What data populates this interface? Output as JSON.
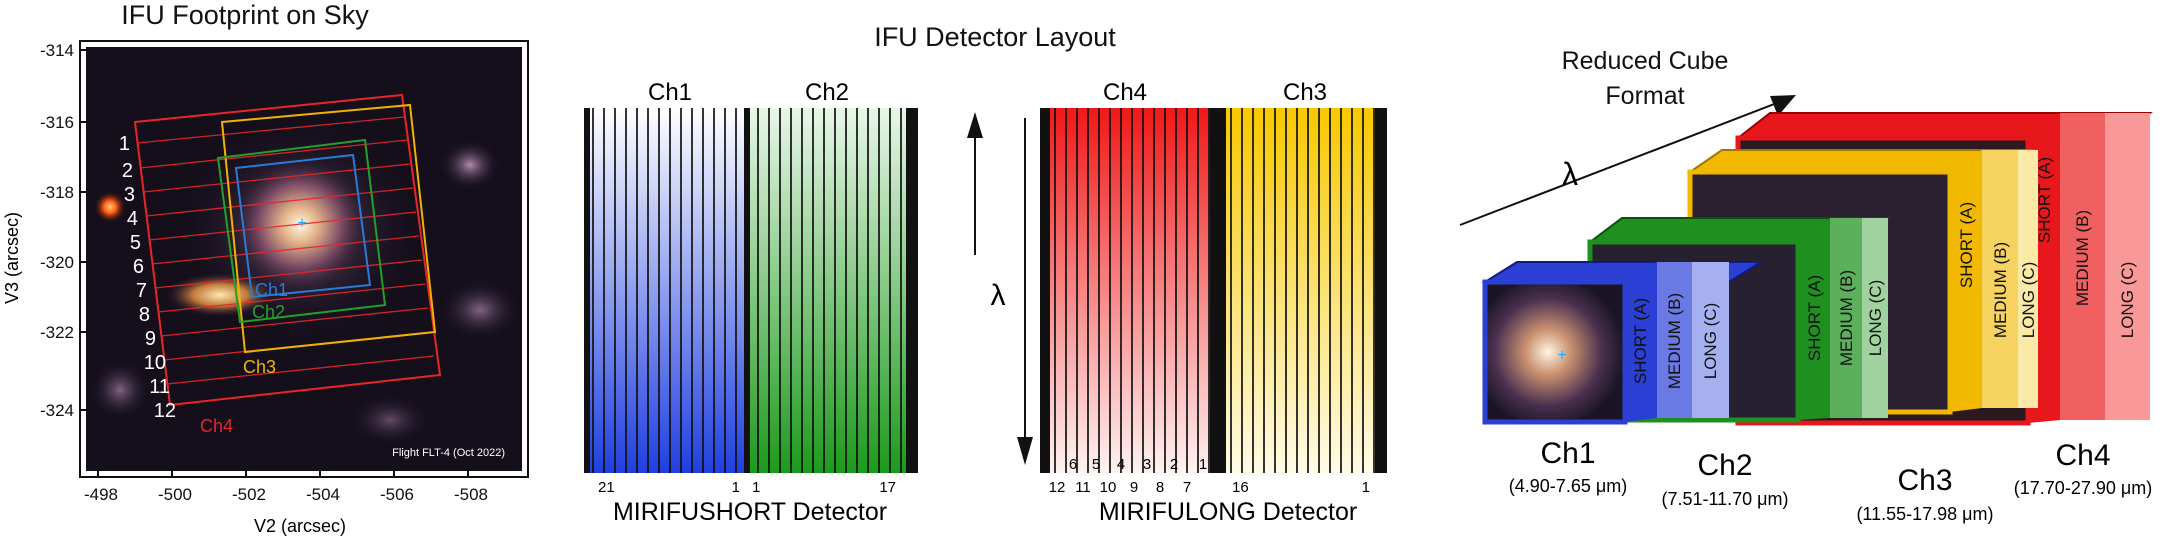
{
  "panel1": {
    "title": "IFU Footprint on Sky",
    "xlabel": "V2 (arcsec)",
    "ylabel": "V3 (arcsec)",
    "xticks": [
      "-498",
      "-500",
      "-502",
      "-504",
      "-506",
      "-508"
    ],
    "yticks": [
      "-314",
      "-316",
      "-318",
      "-320",
      "-322",
      "-324"
    ],
    "slice_numbers": [
      "1",
      "2",
      "3",
      "4",
      "5",
      "6",
      "7",
      "8",
      "9",
      "10",
      "11",
      "12"
    ],
    "channel_labels": {
      "ch1": "Ch1",
      "ch2": "Ch2",
      "ch3": "Ch3",
      "ch4": "Ch4"
    },
    "credit": "Flight FLT-4 (Oct 2022)",
    "colors": {
      "ch1": "#2a7bd6",
      "ch2": "#22a02a",
      "ch3": "#f0b400",
      "ch4": "#e8262a"
    }
  },
  "panel2": {
    "title": "IFU Detector Layout",
    "lambda": "λ",
    "short": {
      "ch_left": "Ch1",
      "ch_right": "Ch2",
      "detector": "MIRIFUSHORT Detector",
      "num_left_start": "21",
      "num_left_end": "1",
      "num_right_start": "1",
      "num_right_end": "17"
    },
    "long": {
      "ch_left": "Ch4",
      "ch_right": "Ch3",
      "detector": "MIRIFULONG Detector",
      "ch4_numbers": [
        "6",
        "5",
        "4",
        "3",
        "2",
        "1"
      ],
      "ch4_bottom": [
        "12",
        "11",
        "10",
        "9",
        "8",
        "7"
      ],
      "num_right_start": "16",
      "num_right_end": "1"
    },
    "colors": {
      "ch1": "#2040d8",
      "ch2": "#1e9a1e",
      "ch3": "#f5c400",
      "ch4": "#ee1c1c"
    }
  },
  "panel3": {
    "title_line1": "Reduced Cube",
    "title_line2": "Format",
    "lambda": "λ",
    "cubes": [
      {
        "name": "Ch1",
        "range": "(4.90-7.65 μm)",
        "bands": [
          "SHORT (A)",
          "MEDIUM (B)",
          "LONG (C)"
        ],
        "color": "#2b3fd4"
      },
      {
        "name": "Ch2",
        "range": "(7.51-11.70 μm)",
        "bands": [
          "SHORT (A)",
          "MEDIUM (B)",
          "LONG (C)"
        ],
        "color": "#1f8f1f"
      },
      {
        "name": "Ch3",
        "range": "(11.55-17.98 μm)",
        "bands": [
          "SHORT (A)",
          "MEDIUM (B)",
          "LONG (C)"
        ],
        "color": "#f2b800"
      },
      {
        "name": "Ch4",
        "range": "(17.70-27.90 μm)",
        "bands": [
          "SHORT (A)",
          "MEDIUM (B)",
          "LONG (C)"
        ],
        "color": "#e8171c"
      }
    ]
  }
}
